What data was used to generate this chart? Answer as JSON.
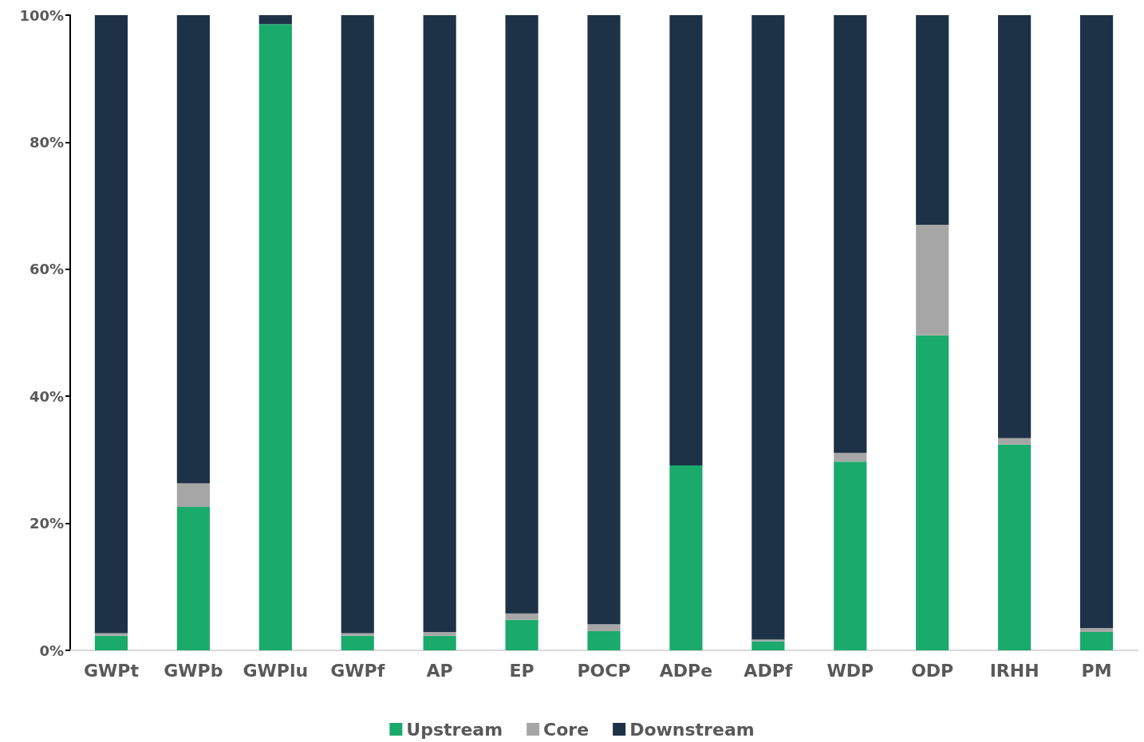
{
  "chart_data": {
    "type": "bar",
    "stacked": true,
    "categories": [
      "GWPt",
      "GWPb",
      "GWPlu",
      "GWPf",
      "AP",
      "EP",
      "POCP",
      "ADPe",
      "ADPf",
      "WDP",
      "ODP",
      "IRHH",
      "PM"
    ],
    "series": [
      {
        "name": "Upstream",
        "color": "#1aaa6b",
        "values": [
          2.3,
          22.6,
          98.6,
          2.3,
          2.3,
          4.8,
          3.0,
          29.1,
          1.4,
          29.7,
          49.6,
          32.4,
          2.9
        ]
      },
      {
        "name": "Core",
        "color": "#a6a6a6",
        "values": [
          0.4,
          3.7,
          null,
          0.4,
          0.6,
          1.0,
          1.1,
          0,
          0.3,
          1.4,
          17.4,
          1.0,
          0.6
        ]
      },
      {
        "name": "Downstream",
        "color": "#1e3247",
        "values": [
          97.3,
          73.7,
          1.4,
          97.3,
          97.1,
          94.2,
          95.9,
          70.9,
          98.3,
          68.9,
          33.0,
          66.6,
          96.5
        ]
      }
    ],
    "ylim": [
      0,
      100
    ],
    "yticks": [
      {
        "value": 0,
        "label": "0%"
      },
      {
        "value": 20,
        "label": "20%"
      },
      {
        "value": 40,
        "label": "40%"
      },
      {
        "value": 60,
        "label": "60%"
      },
      {
        "value": 80,
        "label": "80%"
      },
      {
        "value": 100,
        "label": "100%"
      }
    ],
    "grid": false,
    "legend": "bottom"
  }
}
